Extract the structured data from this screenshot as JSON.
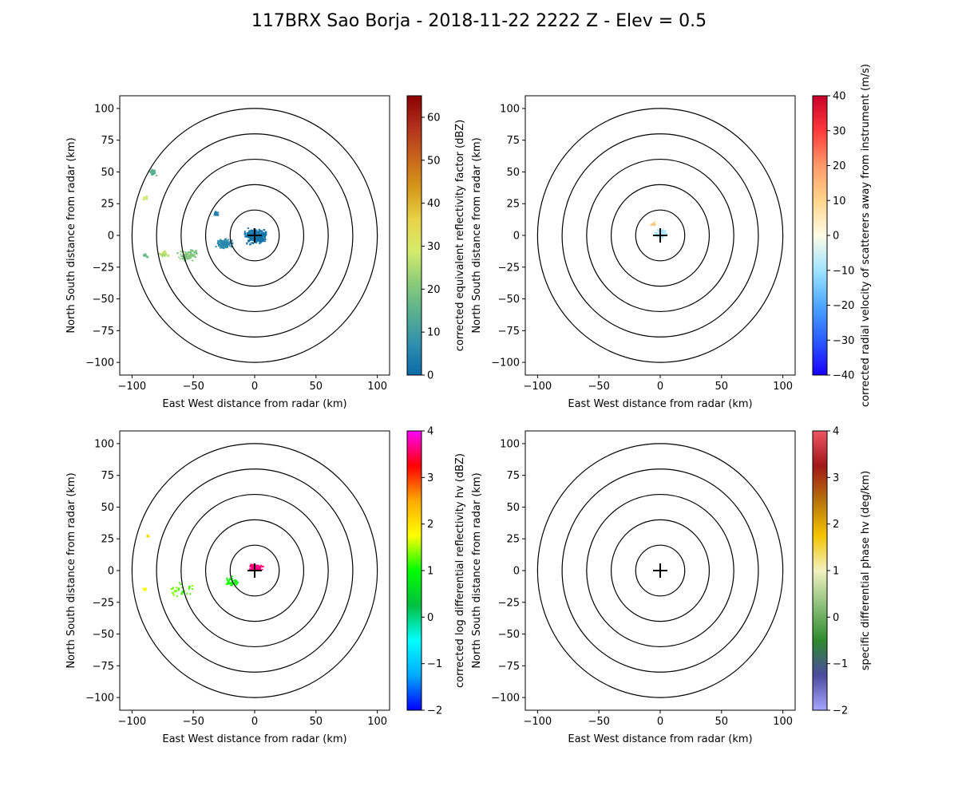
{
  "figure": {
    "title": "117BRX Sao Borja - 2018-11-22 2222 Z -  Elev = 0.5"
  },
  "chart_data": [
    {
      "type": "heatmap",
      "panel": "top-left",
      "xlabel": "East West distance from radar (km)",
      "ylabel": "North South distance from radar (km)",
      "xlim": [
        -110,
        110
      ],
      "ylim": [
        -110,
        110
      ],
      "xticks": [
        -100,
        -50,
        0,
        50,
        100
      ],
      "yticks": [
        -100,
        -75,
        -50,
        -25,
        0,
        25,
        50,
        75,
        100
      ],
      "range_rings_km": [
        20,
        40,
        60,
        80,
        100
      ],
      "colorbar": {
        "label": "corrected equivalent reflectivity factor (dBZ)",
        "min": 0,
        "max": 65,
        "ticks": [
          0,
          10,
          20,
          30,
          40,
          50,
          60
        ],
        "colormap": [
          "#0a6aa8",
          "#2f8fae",
          "#58b08f",
          "#8ccd78",
          "#d6ec6b",
          "#e8d349",
          "#d69a1a",
          "#c8651b",
          "#b0301c",
          "#8b0000"
        ]
      },
      "echoes": [
        {
          "x": 0,
          "y": 0,
          "spread": 12,
          "n": 260,
          "dbz": 2
        },
        {
          "x": -25,
          "y": -6,
          "spread": 9,
          "n": 90,
          "dbz": 6
        },
        {
          "x": -55,
          "y": -15,
          "spread": 10,
          "n": 70,
          "dbz": 20
        },
        {
          "x": -75,
          "y": -14,
          "spread": 6,
          "n": 30,
          "dbz": 26
        },
        {
          "x": -90,
          "y": -15,
          "spread": 3,
          "n": 12,
          "dbz": 17
        },
        {
          "x": -84,
          "y": 50,
          "spread": 5,
          "n": 22,
          "dbz": 15
        },
        {
          "x": -90,
          "y": 30,
          "spread": 3,
          "n": 12,
          "dbz": 28
        },
        {
          "x": -32,
          "y": 18,
          "spread": 4,
          "n": 16,
          "dbz": 4
        }
      ]
    },
    {
      "type": "heatmap",
      "panel": "top-right",
      "xlabel": "East West distance from radar (km)",
      "ylabel": "North South distance from radar (km)",
      "xlim": [
        -110,
        110
      ],
      "ylim": [
        -110,
        110
      ],
      "xticks": [
        -100,
        -50,
        0,
        50,
        100
      ],
      "yticks": [
        -100,
        -75,
        -50,
        -25,
        0,
        25,
        50,
        75,
        100
      ],
      "range_rings_km": [
        20,
        40,
        60,
        80,
        100
      ],
      "colorbar": {
        "label": "corrected radial velocity of scatterers away from instrument (m/s)",
        "min": -40,
        "max": 40,
        "ticks": [
          -40,
          -30,
          -20,
          -10,
          0,
          10,
          20,
          30,
          40
        ],
        "colormap": [
          "#1a00ff",
          "#2a5cff",
          "#4ea8ff",
          "#9fe4ff",
          "#fffbe6",
          "#ffd58a",
          "#ff9a6a",
          "#ff3a3a",
          "#c8002a"
        ]
      },
      "echoes": [
        {
          "x": 0,
          "y": 2,
          "spread": 6,
          "n": 90,
          "vel": -9
        },
        {
          "x": -6,
          "y": 10,
          "spread": 3,
          "n": 10,
          "vel": 12
        }
      ]
    },
    {
      "type": "heatmap",
      "panel": "bottom-left",
      "xlabel": "East West distance from radar (km)",
      "ylabel": "North South distance from radar (km)",
      "xlim": [
        -110,
        110
      ],
      "ylim": [
        -110,
        110
      ],
      "xticks": [
        -100,
        -50,
        0,
        50,
        100
      ],
      "yticks": [
        -100,
        -75,
        -50,
        -25,
        0,
        25,
        50,
        75,
        100
      ],
      "range_rings_km": [
        20,
        40,
        60,
        80,
        100
      ],
      "colorbar": {
        "label": "corrected log differential reflectivity hv (dBZ)",
        "min": -2,
        "max": 4,
        "ticks": [
          -2,
          -1,
          0,
          1,
          2,
          3,
          4
        ],
        "colormap": [
          "#0000ff",
          "#00aaff",
          "#00ffff",
          "#00c040",
          "#00ff00",
          "#ffff00",
          "#ffaa00",
          "#ff0000",
          "#ff00ff"
        ]
      },
      "echoes": [
        {
          "x": 0,
          "y": 3,
          "spread": 6,
          "n": 120,
          "zdr": 3.6
        },
        {
          "x": -20,
          "y": -8,
          "spread": 8,
          "n": 30,
          "zdr": 1.0
        },
        {
          "x": -60,
          "y": -14,
          "spread": 12,
          "n": 24,
          "zdr": 1.3
        },
        {
          "x": -90,
          "y": -14,
          "spread": 3,
          "n": 6,
          "zdr": 1.8
        },
        {
          "x": -88,
          "y": 28,
          "spread": 2,
          "n": 6,
          "zdr": 2.0
        }
      ]
    },
    {
      "type": "heatmap",
      "panel": "bottom-right",
      "xlabel": "East West distance from radar (km)",
      "ylabel": "North South distance from radar (km)",
      "xlim": [
        -110,
        110
      ],
      "ylim": [
        -110,
        110
      ],
      "xticks": [
        -100,
        -50,
        0,
        50,
        100
      ],
      "yticks": [
        -100,
        -75,
        -50,
        -25,
        0,
        25,
        50,
        75,
        100
      ],
      "range_rings_km": [
        20,
        40,
        60,
        80,
        100
      ],
      "colorbar": {
        "label": "specific differential phase hv (deg/km)",
        "min": -2,
        "max": 4,
        "ticks": [
          -2,
          -1,
          0,
          1,
          2,
          3,
          4
        ],
        "colormap": [
          "#a6a6ff",
          "#4b4b9e",
          "#2e8a2e",
          "#8cc07a",
          "#f2f2c0",
          "#f5c400",
          "#b7740a",
          "#a01818",
          "#ee5566"
        ]
      },
      "echoes": []
    }
  ]
}
